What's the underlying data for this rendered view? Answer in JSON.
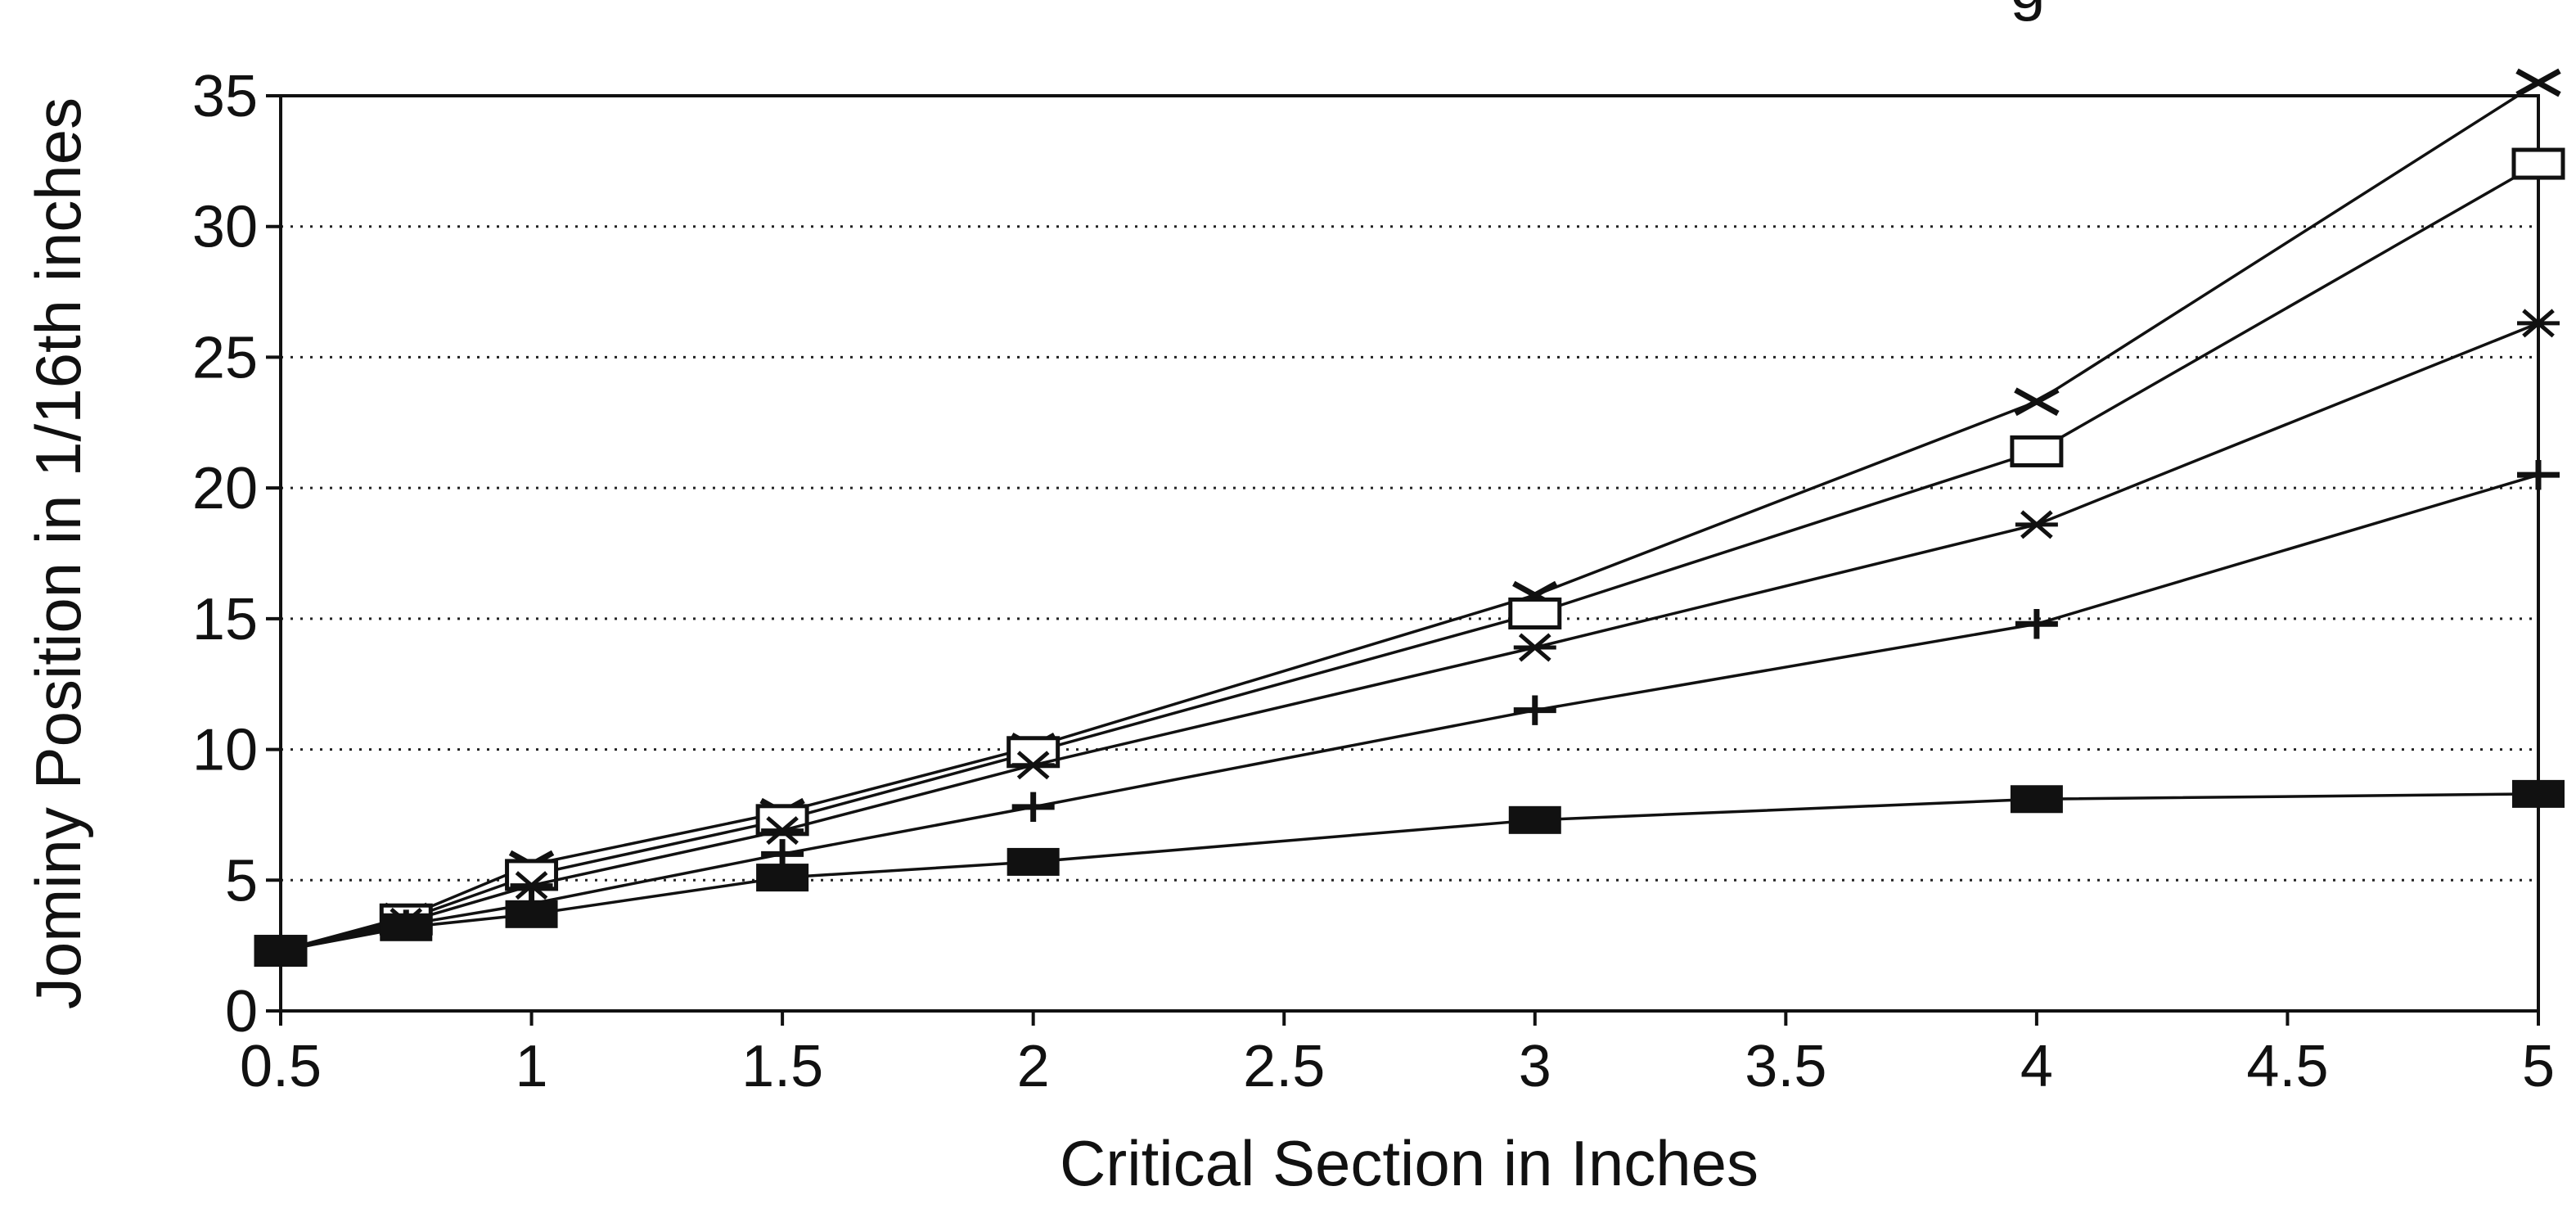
{
  "chart_data": {
    "type": "line",
    "title": "",
    "xlabel": "Critical Section in Inches",
    "ylabel": "Jominy Position in 1/16th inches",
    "x": [
      0.5,
      0.75,
      1,
      1.5,
      2,
      3,
      4,
      5
    ],
    "xticks": [
      "0.5",
      "1",
      "1.5",
      "2",
      "2.5",
      "3",
      "3.5",
      "4",
      "4.5",
      "5"
    ],
    "xtick_values": [
      0.5,
      1,
      1.5,
      2,
      2.5,
      3,
      3.5,
      4,
      4.5,
      5
    ],
    "yticks": [
      "0",
      "5",
      "10",
      "15",
      "20",
      "25",
      "30",
      "35"
    ],
    "ytick_values": [
      0,
      5,
      10,
      15,
      20,
      25,
      30,
      35
    ],
    "xlim": [
      0.5,
      5
    ],
    "ylim": [
      0,
      35
    ],
    "grid": "horizontal dotted",
    "legend": "none",
    "series": [
      {
        "marker": "x",
        "values": [
          2.3,
          3.6,
          5.6,
          7.6,
          10.1,
          15.9,
          23.3,
          35.5
        ]
      },
      {
        "marker": "open-square",
        "values": [
          2.3,
          3.5,
          5.2,
          7.3,
          9.9,
          15.2,
          21.4,
          32.4
        ]
      },
      {
        "marker": "asterisk",
        "values": [
          2.3,
          3.4,
          4.8,
          6.9,
          9.4,
          13.9,
          18.6,
          26.3
        ]
      },
      {
        "marker": "plus",
        "values": [
          2.3,
          3.3,
          4.1,
          6.0,
          7.8,
          11.5,
          14.8,
          20.5
        ]
      },
      {
        "marker": "filled-square",
        "values": [
          2.3,
          3.2,
          3.7,
          5.1,
          5.7,
          7.3,
          8.1,
          8.3
        ]
      }
    ],
    "title_fragment": "g"
  }
}
